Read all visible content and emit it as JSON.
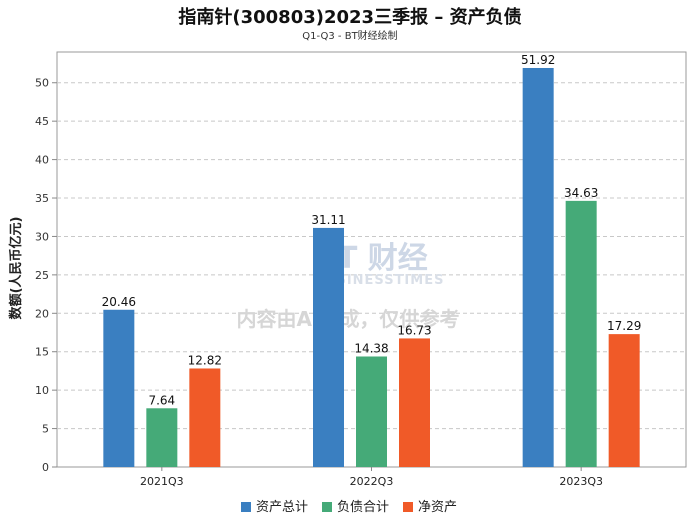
{
  "title": "指南针(300803)2023三季报 – 资产负债",
  "subtitle": "Q1-Q3 - BT财经绘制",
  "watermark": {
    "brand": "BT 财经",
    "brand_en": "BUSINESSTIMES",
    "disclaimer": "内容由AI生成，仅供参考"
  },
  "chart_data": {
    "type": "bar",
    "categories": [
      "2021Q3",
      "2022Q3",
      "2023Q3"
    ],
    "series": [
      {
        "name": "资产总计",
        "values": [
          20.46,
          31.11,
          51.92
        ],
        "color": "#3a7fc1"
      },
      {
        "name": "负债合计",
        "values": [
          7.64,
          14.38,
          34.63
        ],
        "color": "#45aa78"
      },
      {
        "name": "净资产",
        "values": [
          12.82,
          16.73,
          17.29
        ],
        "color": "#f05a28"
      }
    ],
    "ylabel": "数额(人民币亿元)",
    "ylim": [
      0,
      54
    ],
    "yticks": [
      0,
      5,
      10,
      15,
      20,
      25,
      30,
      35,
      40,
      45,
      50
    ],
    "grid": true,
    "legend": "bottom-center"
  }
}
